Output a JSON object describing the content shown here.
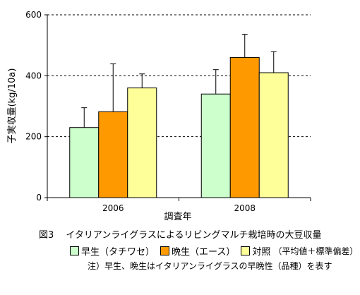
{
  "chart_data": {
    "type": "bar",
    "categories": [
      "2006",
      "2008"
    ],
    "series": [
      {
        "name": "早生（タチワセ）",
        "values": [
          230,
          340
        ],
        "error": [
          65,
          80
        ],
        "color": "#ccffcc"
      },
      {
        "name": "晩生（エース）",
        "values": [
          282,
          460
        ],
        "error": [
          157,
          76
        ],
        "color": "#ff9900"
      },
      {
        "name": "対照",
        "values": [
          360,
          410
        ],
        "error": [
          46,
          69
        ],
        "color": "#ffff99"
      }
    ],
    "xlabel": "調査年",
    "ylabel": "子実収量(kg/10a)",
    "ylim": [
      0,
      600
    ],
    "yticks": [
      "0",
      "200",
      "400",
      "600"
    ],
    "grid": "dashed horizontal"
  },
  "caption": {
    "figure_title": "図3　 イタリアンライグラスによるリビングマルチ栽培時の大豆収量",
    "legend_note": "（平均値＋標準偏差）",
    "footnote": "注）早生、晩生はイタリアンライグラスの早晩性（品種）を表す"
  }
}
